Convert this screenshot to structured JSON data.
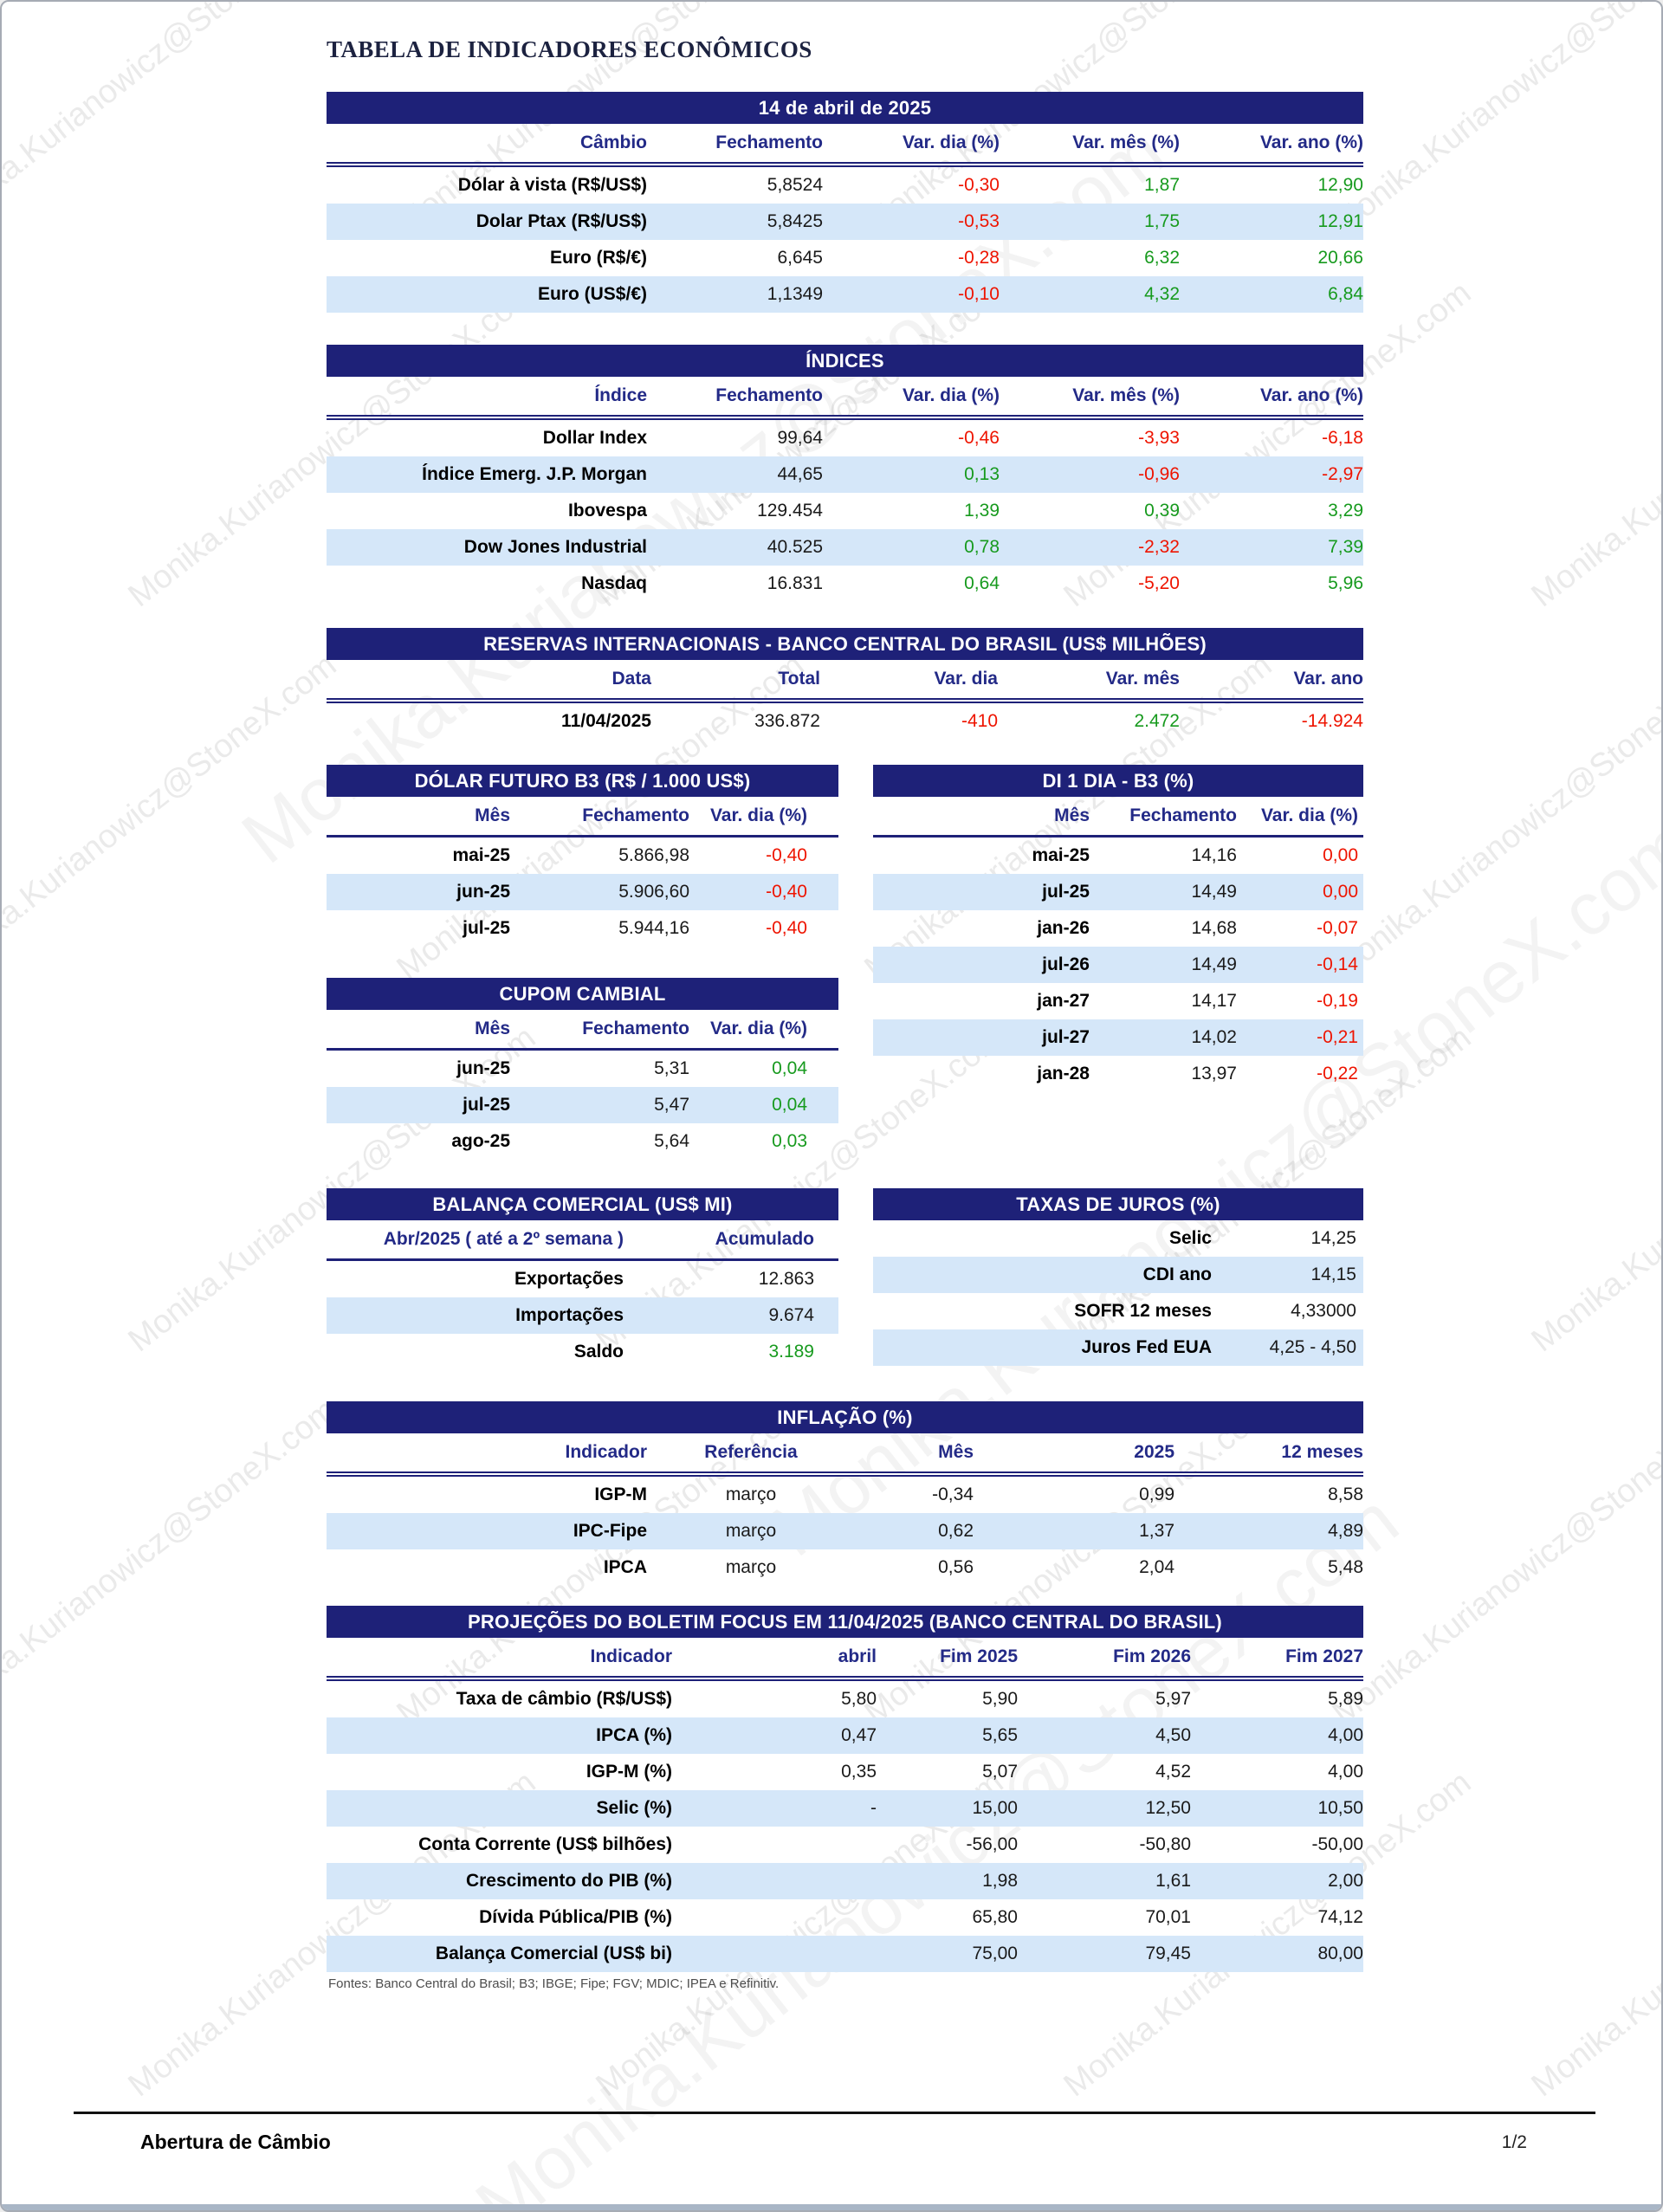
{
  "page": {
    "title": "TABELA DE INDICADORES ECONÔMICOS",
    "watermark": "Monika.Kurianowicz@StoneX.com",
    "sources": "Fontes: Banco Central do Brasil; B3; IBGE; Fipe; FGV; MDIC; IPEA e Refinitiv.",
    "footer_left": "Abertura de Câmbio",
    "footer_page": "1/2"
  },
  "colors": {
    "navy": "#1e2178",
    "col_header": "#232a87",
    "light_row": "#d5e7f9",
    "red": "#ee1400",
    "green": "#179a1e"
  },
  "tables": {
    "cambio": {
      "title": "14 de abril de 2025",
      "columns": [
        "Câmbio",
        "Fechamento",
        "Var. dia (%)",
        "Var. mês (%)",
        "Var. ano (%)"
      ],
      "rows": [
        [
          {
            "v": "Dólar à vista (R$/US$)"
          },
          {
            "v": "5,8524"
          },
          {
            "v": "-0,30",
            "c": "red"
          },
          {
            "v": "1,87",
            "c": "green"
          },
          {
            "v": "12,90",
            "c": "green"
          }
        ],
        [
          {
            "v": "Dolar Ptax (R$/US$)"
          },
          {
            "v": "5,8425"
          },
          {
            "v": "-0,53",
            "c": "red"
          },
          {
            "v": "1,75",
            "c": "green"
          },
          {
            "v": "12,91",
            "c": "green"
          }
        ],
        [
          {
            "v": "Euro (R$/€)"
          },
          {
            "v": "6,645"
          },
          {
            "v": "-0,28",
            "c": "red"
          },
          {
            "v": "6,32",
            "c": "green"
          },
          {
            "v": "20,66",
            "c": "green"
          }
        ],
        [
          {
            "v": "Euro (US$/€)"
          },
          {
            "v": "1,1349"
          },
          {
            "v": "-0,10",
            "c": "red"
          },
          {
            "v": "4,32",
            "c": "green"
          },
          {
            "v": "6,84",
            "c": "green"
          }
        ]
      ]
    },
    "indices": {
      "title": "ÍNDICES",
      "columns": [
        "Índice",
        "Fechamento",
        "Var. dia (%)",
        "Var. mês (%)",
        "Var. ano (%)"
      ],
      "rows": [
        [
          {
            "v": "Dollar Index"
          },
          {
            "v": "99,64"
          },
          {
            "v": "-0,46",
            "c": "red"
          },
          {
            "v": "-3,93",
            "c": "red"
          },
          {
            "v": "-6,18",
            "c": "red"
          }
        ],
        [
          {
            "v": "Índice Emerg. J.P. Morgan"
          },
          {
            "v": "44,65"
          },
          {
            "v": "0,13",
            "c": "green"
          },
          {
            "v": "-0,96",
            "c": "red"
          },
          {
            "v": "-2,97",
            "c": "red"
          }
        ],
        [
          {
            "v": "Ibovespa"
          },
          {
            "v": "129.454"
          },
          {
            "v": "1,39",
            "c": "green"
          },
          {
            "v": "0,39",
            "c": "green"
          },
          {
            "v": "3,29",
            "c": "green"
          }
        ],
        [
          {
            "v": "Dow Jones Industrial"
          },
          {
            "v": "40.525"
          },
          {
            "v": "0,78",
            "c": "green"
          },
          {
            "v": "-2,32",
            "c": "red"
          },
          {
            "v": "7,39",
            "c": "green"
          }
        ],
        [
          {
            "v": "Nasdaq"
          },
          {
            "v": "16.831"
          },
          {
            "v": "0,64",
            "c": "green"
          },
          {
            "v": "-5,20",
            "c": "red"
          },
          {
            "v": "5,96",
            "c": "green"
          }
        ]
      ]
    },
    "reservas": {
      "title": "RESERVAS INTERNACIONAIS - BANCO CENTRAL DO BRASIL (US$ MILHÕES)",
      "columns": [
        "Data",
        "Total",
        "Var. dia",
        "Var. mês",
        "Var. ano"
      ],
      "rows": [
        [
          {
            "v": "11/04/2025"
          },
          {
            "v": "336.872"
          },
          {
            "v": "-410",
            "c": "red"
          },
          {
            "v": "2.472",
            "c": "green"
          },
          {
            "v": "-14.924",
            "c": "red"
          }
        ]
      ]
    },
    "dolar_futuro": {
      "title": "DÓLAR FUTURO B3 (R$ / 1.000 US$)",
      "columns": [
        "Mês",
        "Fechamento",
        "Var. dia (%)"
      ],
      "rows": [
        [
          {
            "v": "mai-25"
          },
          {
            "v": "5.866,98"
          },
          {
            "v": "-0,40",
            "c": "red"
          }
        ],
        [
          {
            "v": "jun-25"
          },
          {
            "v": "5.906,60"
          },
          {
            "v": "-0,40",
            "c": "red"
          }
        ],
        [
          {
            "v": "jul-25"
          },
          {
            "v": "5.944,16"
          },
          {
            "v": "-0,40",
            "c": "red"
          }
        ]
      ]
    },
    "di": {
      "title": "DI 1 DIA - B3 (%)",
      "columns": [
        "Mês",
        "Fechamento",
        "Var. dia (%)"
      ],
      "rows": [
        [
          {
            "v": "mai-25"
          },
          {
            "v": "14,16"
          },
          {
            "v": "0,00",
            "c": "red"
          }
        ],
        [
          {
            "v": "jul-25"
          },
          {
            "v": "14,49"
          },
          {
            "v": "0,00",
            "c": "red"
          }
        ],
        [
          {
            "v": "jan-26"
          },
          {
            "v": "14,68"
          },
          {
            "v": "-0,07",
            "c": "red"
          }
        ],
        [
          {
            "v": "jul-26"
          },
          {
            "v": "14,49"
          },
          {
            "v": "-0,14",
            "c": "red"
          }
        ],
        [
          {
            "v": "jan-27"
          },
          {
            "v": "14,17"
          },
          {
            "v": "-0,19",
            "c": "red"
          }
        ],
        [
          {
            "v": "jul-27"
          },
          {
            "v": "14,02"
          },
          {
            "v": "-0,21",
            "c": "red"
          }
        ],
        [
          {
            "v": "jan-28"
          },
          {
            "v": "13,97"
          },
          {
            "v": "-0,22",
            "c": "red"
          }
        ]
      ]
    },
    "cupom": {
      "title": "CUPOM CAMBIAL",
      "columns": [
        "Mês",
        "Fechamento",
        "Var. dia (%)"
      ],
      "rows": [
        [
          {
            "v": "jun-25"
          },
          {
            "v": "5,31"
          },
          {
            "v": "0,04",
            "c": "green"
          }
        ],
        [
          {
            "v": "jul-25"
          },
          {
            "v": "5,47"
          },
          {
            "v": "0,04",
            "c": "green"
          }
        ],
        [
          {
            "v": "ago-25"
          },
          {
            "v": "5,64"
          },
          {
            "v": "0,03",
            "c": "green"
          }
        ]
      ]
    },
    "balanca": {
      "title": "BALANÇA COMERCIAL (US$ MI)",
      "columns": [
        "Abr/2025 ( até a 2º semana )",
        "Acumulado"
      ],
      "rows": [
        [
          {
            "v": "Exportações"
          },
          {
            "v": "12.863"
          }
        ],
        [
          {
            "v": "Importações"
          },
          {
            "v": "9.674"
          }
        ],
        [
          {
            "v": "Saldo"
          },
          {
            "v": "3.189",
            "c": "green"
          }
        ]
      ]
    },
    "juros": {
      "title": "TAXAS DE JUROS (%)",
      "rows": [
        [
          {
            "v": "Selic"
          },
          {
            "v": "14,25"
          }
        ],
        [
          {
            "v": "CDI ano"
          },
          {
            "v": "14,15"
          }
        ],
        [
          {
            "v": "SOFR 12 meses"
          },
          {
            "v": "4,33000"
          }
        ],
        [
          {
            "v": "Juros Fed EUA"
          },
          {
            "v": "4,25 - 4,50"
          }
        ]
      ]
    },
    "inflacao": {
      "title": "INFLAÇÃO (%)",
      "columns": [
        "Indicador",
        "Referência",
        "Mês",
        "2025",
        "12 meses"
      ],
      "rows": [
        [
          {
            "v": "IGP-M"
          },
          {
            "v": "março"
          },
          {
            "v": "-0,34"
          },
          {
            "v": "0,99"
          },
          {
            "v": "8,58"
          }
        ],
        [
          {
            "v": "IPC-Fipe"
          },
          {
            "v": "março"
          },
          {
            "v": "0,62"
          },
          {
            "v": "1,37"
          },
          {
            "v": "4,89"
          }
        ],
        [
          {
            "v": "IPCA"
          },
          {
            "v": "março"
          },
          {
            "v": "0,56"
          },
          {
            "v": "2,04"
          },
          {
            "v": "5,48"
          }
        ]
      ]
    },
    "focus": {
      "title": "PROJEÇÕES DO BOLETIM FOCUS EM 11/04/2025 (BANCO CENTRAL DO BRASIL)",
      "columns": [
        "Indicador",
        "abril",
        "Fim 2025",
        "Fim 2026",
        "Fim 2027"
      ],
      "rows": [
        [
          {
            "v": "Taxa de câmbio (R$/US$)"
          },
          {
            "v": "5,80"
          },
          {
            "v": "5,90"
          },
          {
            "v": "5,97"
          },
          {
            "v": "5,89"
          }
        ],
        [
          {
            "v": "IPCA (%)"
          },
          {
            "v": "0,47"
          },
          {
            "v": "5,65"
          },
          {
            "v": "4,50"
          },
          {
            "v": "4,00"
          }
        ],
        [
          {
            "v": "IGP-M (%)"
          },
          {
            "v": "0,35"
          },
          {
            "v": "5,07"
          },
          {
            "v": "4,52"
          },
          {
            "v": "4,00"
          }
        ],
        [
          {
            "v": "Selic (%)"
          },
          {
            "v": "-"
          },
          {
            "v": "15,00"
          },
          {
            "v": "12,50"
          },
          {
            "v": "10,50"
          }
        ],
        [
          {
            "v": "Conta Corrente (US$ bilhões)"
          },
          {
            "v": ""
          },
          {
            "v": "-56,00"
          },
          {
            "v": "-50,80"
          },
          {
            "v": "-50,00"
          }
        ],
        [
          {
            "v": "Crescimento do PIB (%)"
          },
          {
            "v": ""
          },
          {
            "v": "1,98"
          },
          {
            "v": "1,61"
          },
          {
            "v": "2,00"
          }
        ],
        [
          {
            "v": "Dívida Pública/PIB (%)"
          },
          {
            "v": ""
          },
          {
            "v": "65,80"
          },
          {
            "v": "70,01"
          },
          {
            "v": "74,12"
          }
        ],
        [
          {
            "v": "Balança Comercial (US$ bi)"
          },
          {
            "v": ""
          },
          {
            "v": "75,00"
          },
          {
            "v": "79,45"
          },
          {
            "v": "80,00"
          }
        ]
      ]
    }
  }
}
